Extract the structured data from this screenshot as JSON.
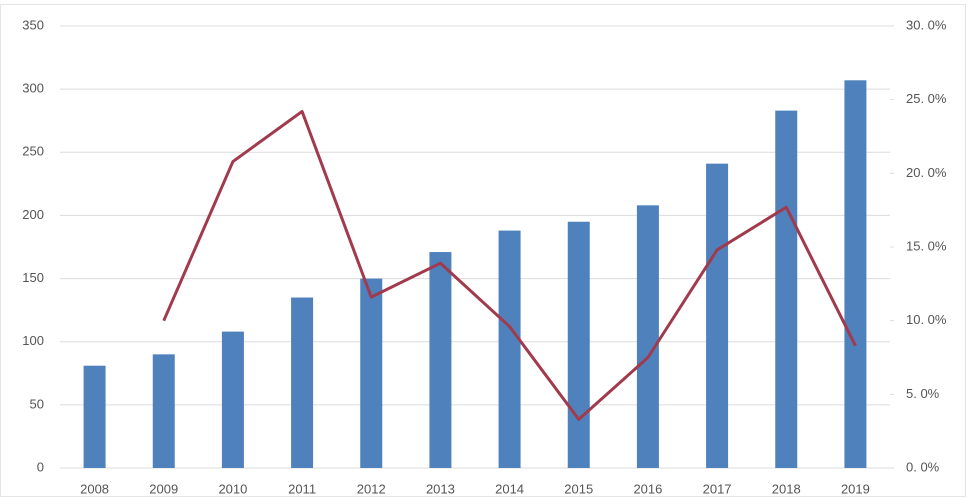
{
  "chart_data": {
    "type": "bar-line",
    "categories": [
      "2008",
      "2009",
      "2010",
      "2011",
      "2012",
      "2013",
      "2014",
      "2015",
      "2016",
      "2017",
      "2018",
      "2019"
    ],
    "series": [
      {
        "type": "bar",
        "color": "#4f81bd",
        "values": [
          81,
          90,
          108,
          135,
          150,
          171,
          188,
          195,
          208,
          241,
          283,
          307
        ]
      },
      {
        "type": "line",
        "axis": "y2",
        "color": "#a13a4c",
        "values": [
          null,
          10.0,
          20.8,
          24.2,
          11.6,
          13.9,
          9.6,
          3.3,
          7.5,
          14.8,
          17.7,
          8.3
        ]
      }
    ],
    "ylim": [
      0,
      350
    ],
    "yticks": [
      0,
      50,
      100,
      150,
      200,
      250,
      300,
      350
    ],
    "y2lim": [
      0,
      30
    ],
    "y2ticks": [
      {
        "value": 0,
        "label": "0. 0%"
      },
      {
        "value": 5,
        "label": "5. 0%"
      },
      {
        "value": 10,
        "label": "10. 0%"
      },
      {
        "value": 15,
        "label": "15. 0%"
      },
      {
        "value": 20,
        "label": "20. 0%"
      },
      {
        "value": 25,
        "label": "25. 0%"
      },
      {
        "value": 30,
        "label": "30. 0%"
      }
    ],
    "grid": true
  }
}
